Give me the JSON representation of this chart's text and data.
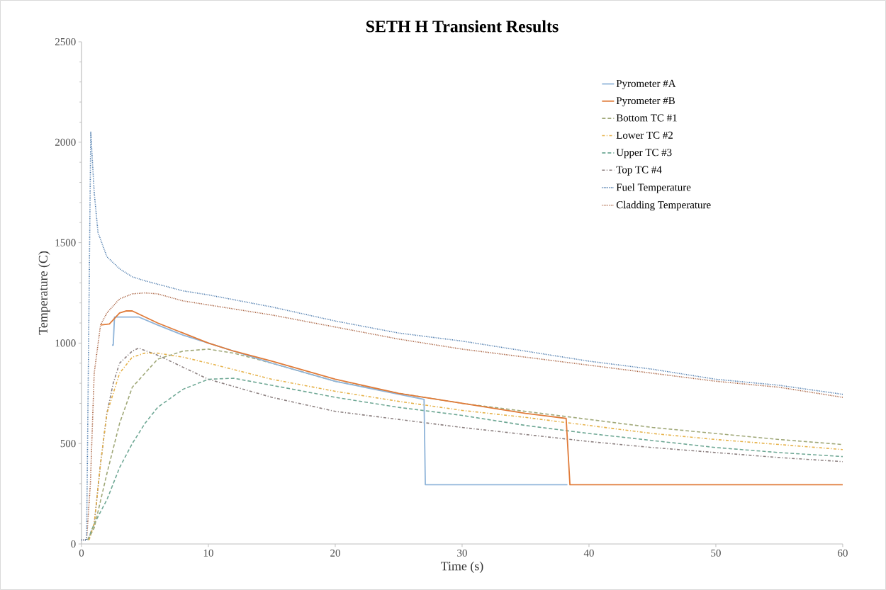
{
  "chart_data": {
    "type": "line",
    "title": "SETH H Transient Results",
    "xlabel": "Time (s)",
    "ylabel": "Temperature (C)",
    "xlim": [
      0,
      60
    ],
    "xticks": [
      0,
      10,
      20,
      30,
      40,
      50,
      60
    ],
    "ylim": [
      0,
      2500
    ],
    "yticks": [
      0,
      500,
      1000,
      1500,
      2000,
      2500
    ],
    "grid": false,
    "legend": "top right",
    "marker": "none",
    "series": [
      {
        "name": "Pyrometer #A",
        "color": "#8fb4d9",
        "line_style": "solid",
        "x": [
          2.4,
          2.5,
          2.6,
          4.5,
          6,
          8,
          10,
          12,
          15,
          20,
          25,
          27,
          27.1,
          38.3
        ],
        "values": [
          990,
          990,
          1130,
          1130,
          1090,
          1040,
          1000,
          960,
          900,
          810,
          745,
          720,
          295,
          295
        ]
      },
      {
        "name": "Pyrometer #B",
        "color": "#e07b39",
        "line_style": "solid",
        "x": [
          1.5,
          2.2,
          3,
          3.5,
          4,
          5,
          6,
          8,
          10,
          12,
          15,
          20,
          25,
          30,
          35,
          38.2,
          38.5,
          60
        ],
        "values": [
          1090,
          1095,
          1150,
          1160,
          1160,
          1130,
          1100,
          1050,
          1000,
          960,
          910,
          820,
          750,
          700,
          650,
          625,
          295,
          295
        ]
      },
      {
        "name": "Bottom TC #1",
        "color": "#a0a878",
        "line_style": "dashed",
        "x": [
          0.5,
          1,
          2,
          3,
          4,
          6,
          8,
          10,
          12,
          15,
          20,
          25,
          30,
          35,
          40,
          45,
          50,
          55,
          60
        ],
        "values": [
          20,
          80,
          350,
          600,
          780,
          920,
          960,
          970,
          950,
          900,
          810,
          750,
          700,
          660,
          620,
          580,
          550,
          520,
          495
        ]
      },
      {
        "name": "Lower TC #2",
        "color": "#e6b24a",
        "line_style": "dashdot",
        "x": [
          0.6,
          1,
          1.5,
          2,
          3,
          4,
          5,
          6,
          8,
          10,
          15,
          20,
          25,
          30,
          35,
          40,
          45,
          50,
          55,
          60
        ],
        "values": [
          20,
          100,
          400,
          650,
          850,
          930,
          950,
          950,
          930,
          900,
          820,
          760,
          710,
          665,
          630,
          590,
          550,
          520,
          495,
          470
        ]
      },
      {
        "name": "Upper TC #3",
        "color": "#6fa895",
        "line_style": "dashed",
        "x": [
          0.5,
          1,
          2,
          3,
          4,
          5,
          6,
          8,
          10,
          12,
          15,
          20,
          25,
          30,
          35,
          40,
          45,
          50,
          55,
          60
        ],
        "values": [
          20,
          100,
          220,
          380,
          500,
          600,
          680,
          770,
          820,
          825,
          790,
          730,
          680,
          640,
          590,
          550,
          515,
          480,
          455,
          435
        ]
      },
      {
        "name": "Top TC #4",
        "color": "#8c8080",
        "line_style": "dashdot",
        "x": [
          0.5,
          1,
          1.5,
          2,
          2.5,
          3,
          4,
          4.5,
          6,
          8,
          10,
          15,
          20,
          25,
          30,
          35,
          40,
          45,
          50,
          55,
          60
        ],
        "values": [
          20,
          100,
          400,
          650,
          800,
          900,
          960,
          975,
          940,
          880,
          820,
          730,
          660,
          620,
          580,
          545,
          510,
          480,
          455,
          430,
          410
        ]
      },
      {
        "name": "Fuel Temperature",
        "color": "#3b6ea5",
        "line_style": "dotted",
        "x": [
          0,
          0.4,
          0.73,
          1,
          1.3,
          2,
          3,
          4,
          5,
          8,
          10,
          15,
          20,
          25,
          30,
          35,
          40,
          45,
          50,
          55,
          60
        ],
        "values": [
          20,
          20,
          2050,
          1750,
          1550,
          1430,
          1370,
          1330,
          1310,
          1260,
          1240,
          1180,
          1110,
          1050,
          1010,
          960,
          910,
          870,
          820,
          790,
          745
        ]
      },
      {
        "name": "Cladding Temperature",
        "color": "#a0522d",
        "line_style": "dotted",
        "x": [
          0,
          0.4,
          0.7,
          1,
          1.5,
          2,
          3,
          4,
          5,
          6,
          8,
          10,
          15,
          20,
          25,
          30,
          35,
          40,
          45,
          50,
          55,
          60
        ],
        "values": [
          20,
          20,
          300,
          850,
          1090,
          1150,
          1220,
          1245,
          1250,
          1245,
          1210,
          1190,
          1140,
          1080,
          1020,
          970,
          930,
          890,
          850,
          810,
          780,
          730
        ]
      }
    ]
  }
}
